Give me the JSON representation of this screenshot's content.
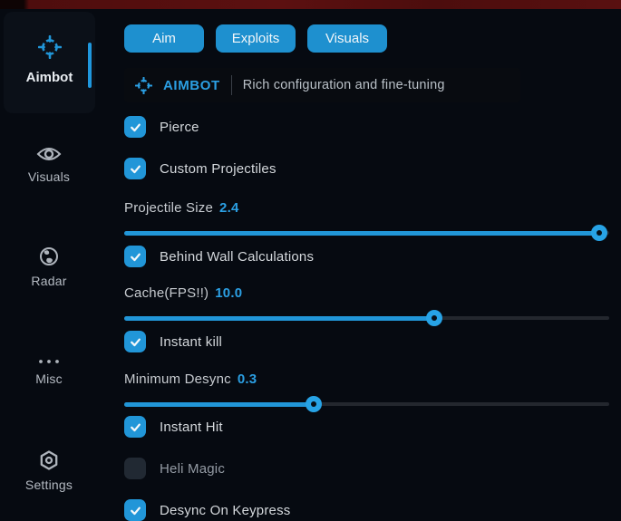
{
  "colors": {
    "accent": "#2196d8",
    "accent_text": "#2b9fe3",
    "track": "#23272e",
    "background": "#060a11",
    "red_strip": "#5c1010"
  },
  "sidebar": {
    "items": [
      {
        "label": "Aimbot",
        "icon": "crosshair-icon",
        "active": true
      },
      {
        "label": "Visuals",
        "icon": "eye-icon",
        "active": false
      },
      {
        "label": "Radar",
        "icon": "globe-icon",
        "active": false
      },
      {
        "label": "Misc",
        "icon": "ellipsis-icon",
        "active": false
      },
      {
        "label": "Settings",
        "icon": "gear-icon",
        "active": false
      }
    ]
  },
  "tabs": [
    {
      "label": "Aim"
    },
    {
      "label": "Exploits"
    },
    {
      "label": "Visuals"
    }
  ],
  "header": {
    "icon": "crosshair-icon",
    "title": "AIMBOT",
    "subtitle": "Rich configuration and fine-tuning"
  },
  "controls": [
    {
      "type": "checkbox",
      "label": "Pierce",
      "checked": true
    },
    {
      "type": "checkbox",
      "label": "Custom Projectiles",
      "checked": true
    },
    {
      "type": "slider",
      "label": "Projectile Size",
      "value": "2.4",
      "percent": 98
    },
    {
      "type": "checkbox",
      "label": "Behind Wall Calculations",
      "checked": true
    },
    {
      "type": "slider",
      "label": "Cache(FPS!!)",
      "value": "10.0",
      "percent": 64
    },
    {
      "type": "checkbox",
      "label": "Instant kill",
      "checked": true
    },
    {
      "type": "slider",
      "label": "Minimum Desync",
      "value": "0.3",
      "percent": 39
    },
    {
      "type": "checkbox",
      "label": "Instant Hit",
      "checked": true
    },
    {
      "type": "checkbox",
      "label": "Heli Magic",
      "checked": false
    },
    {
      "type": "checkbox",
      "label": "Desync On Keypress",
      "checked": true
    }
  ]
}
